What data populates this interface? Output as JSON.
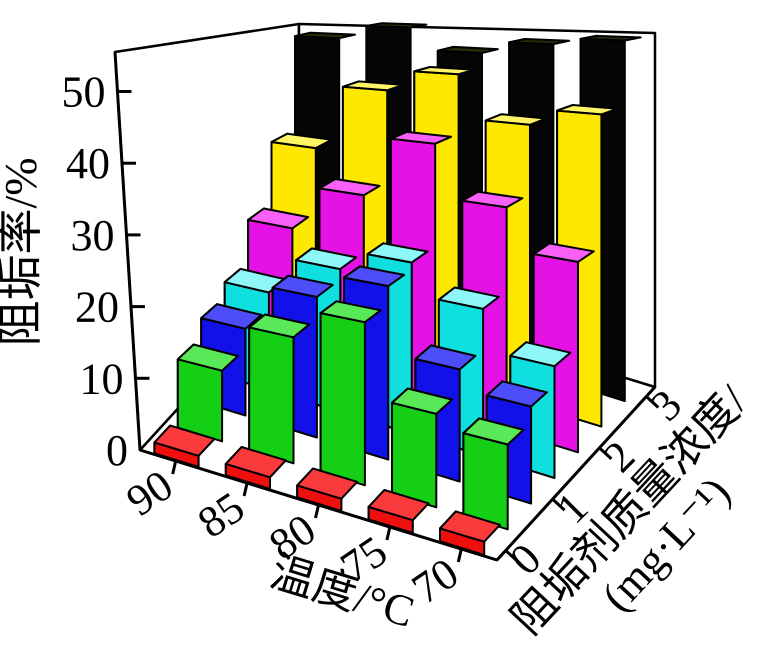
{
  "chart_data": {
    "type": "bar3d",
    "title": "",
    "ylabel": "阻垢率/%",
    "xlabel": "温度/°C",
    "zlabel_line1": "阻垢剂质量浓度/",
    "zlabel_line2": "(mg·L⁻¹)",
    "zlabel": "阻垢剂质量浓度/(mg·L⁻¹)",
    "x_categories_temperature_C": [
      "90",
      "85",
      "80",
      "75",
      "70"
    ],
    "y_ticks": [
      "0",
      "10",
      "20",
      "30",
      "40",
      "50"
    ],
    "y_tick_values": [
      0,
      10,
      20,
      30,
      40,
      50
    ],
    "ylim": [
      0,
      55.5
    ],
    "depth_tick_labels": [
      "0",
      "1",
      "2",
      "3"
    ],
    "depth_series_concentration_mg_L": [
      0,
      0.5,
      1,
      1.5,
      2,
      2.5,
      3
    ],
    "legend_position": "none",
    "grid": false,
    "series": [
      {
        "name": "0 mg·L⁻¹",
        "concentration_mg_L": 0,
        "color": "#ee0f0f",
        "side_color": "#a80808",
        "top_color": "#fb3b3b",
        "values": [
          1.5,
          1.5,
          1.5,
          1.5,
          1.5
        ]
      },
      {
        "name": "0.5 mg·L⁻¹",
        "concentration_mg_L": 0.5,
        "color": "#15cf15",
        "side_color": "#0b920b",
        "top_color": "#58e858",
        "values": [
          10,
          17,
          21,
          11.5,
          10
        ]
      },
      {
        "name": "1 mg·L⁻¹",
        "concentration_mg_L": 1,
        "color": "#1212e8",
        "side_color": "#0a0aa0",
        "top_color": "#4d4dfa",
        "values": [
          13,
          20,
          23.5,
          14.5,
          12
        ]
      },
      {
        "name": "1.5 mg·L⁻¹",
        "concentration_mg_L": 1.5,
        "color": "#0fdfdf",
        "side_color": "#099c9c",
        "top_color": "#8ef7f7",
        "values": [
          15.5,
          21.5,
          24.5,
          20,
          14.5
        ]
      },
      {
        "name": "2 mg·L⁻¹",
        "concentration_mg_L": 2,
        "color": "#e512e5",
        "side_color": "#a00aa0",
        "top_color": "#f860f8",
        "values": [
          23,
          30.5,
          40,
          32,
          26
        ]
      },
      {
        "name": "2.5 mg·L⁻¹",
        "concentration_mg_L": 2.5,
        "color": "#ffe800",
        "side_color": "#b3a300",
        "top_color": "#fff566",
        "values": [
          34.5,
          46,
          49.5,
          42.5,
          45
        ]
      },
      {
        "name": "3 mg·L⁻¹",
        "concentration_mg_L": 3,
        "color": "#050505",
        "side_color": "#3c3c10",
        "top_color": "#2a2a08",
        "values": [
          53.5,
          56,
          52,
          54,
          55
        ]
      }
    ]
  }
}
